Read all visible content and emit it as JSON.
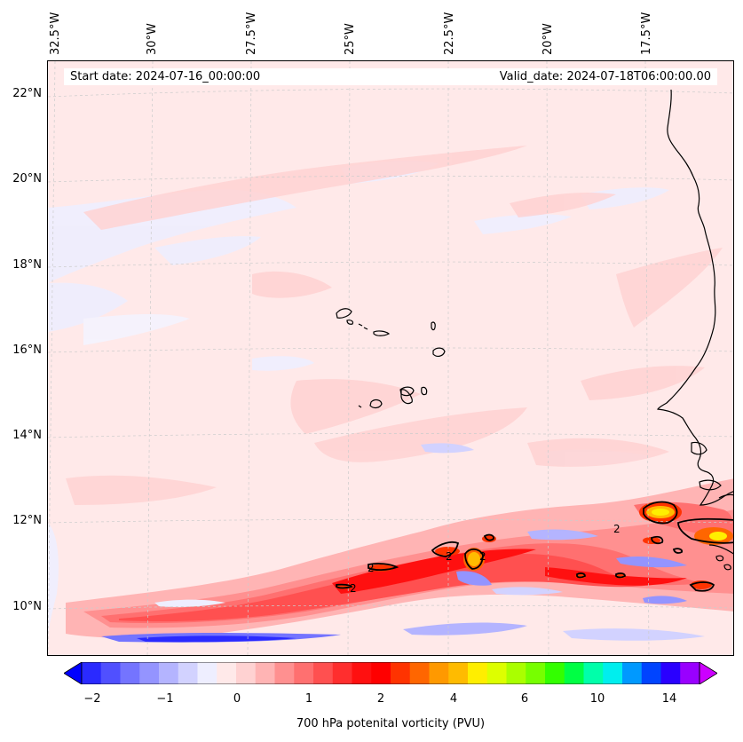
{
  "header": {
    "start_date": "Start date: 2024-07-16_00:00:00",
    "valid_date": "Valid_date: 2024-07-18T06:00:00.00"
  },
  "longitude_ticks": [
    "32.5°W",
    "30°W",
    "27.5°W",
    "25°W",
    "22.5°W",
    "20°W",
    "17.5°W"
  ],
  "latitude_ticks": [
    "22°N",
    "20°N",
    "18°N",
    "16°N",
    "14°N",
    "12°N",
    "10°N"
  ],
  "contour_labels": [
    "2",
    "2",
    "2",
    "2",
    "2"
  ],
  "colorbar": {
    "label": "700 hPa potenital vorticity (PVU)",
    "ticks": [
      "−2",
      "−1",
      "0",
      "1",
      "2",
      "4",
      "6",
      "10",
      "14"
    ],
    "colors": [
      "#0000ff",
      "#2a2aff",
      "#5050ff",
      "#7474ff",
      "#9494ff",
      "#b4b4ff",
      "#d2d2ff",
      "#eeeeff",
      "#ffe9e9",
      "#ffd2d2",
      "#ffb4b4",
      "#ff9090",
      "#ff7070",
      "#ff5050",
      "#ff2e2e",
      "#ff1010",
      "#ff0000",
      "#ff3300",
      "#ff6600",
      "#ff9900",
      "#ffbb00",
      "#ffee00",
      "#ddff00",
      "#aaff00",
      "#77ff00",
      "#33ff00",
      "#00ff44",
      "#00ffaa",
      "#00eeee",
      "#0099ff",
      "#0044ff",
      "#2a00ff",
      "#9900ff",
      "#cc00ff"
    ]
  },
  "colors": {
    "background_pv": "#ffe9e9",
    "coastline": "#000000",
    "gridline": "#cccccc"
  }
}
